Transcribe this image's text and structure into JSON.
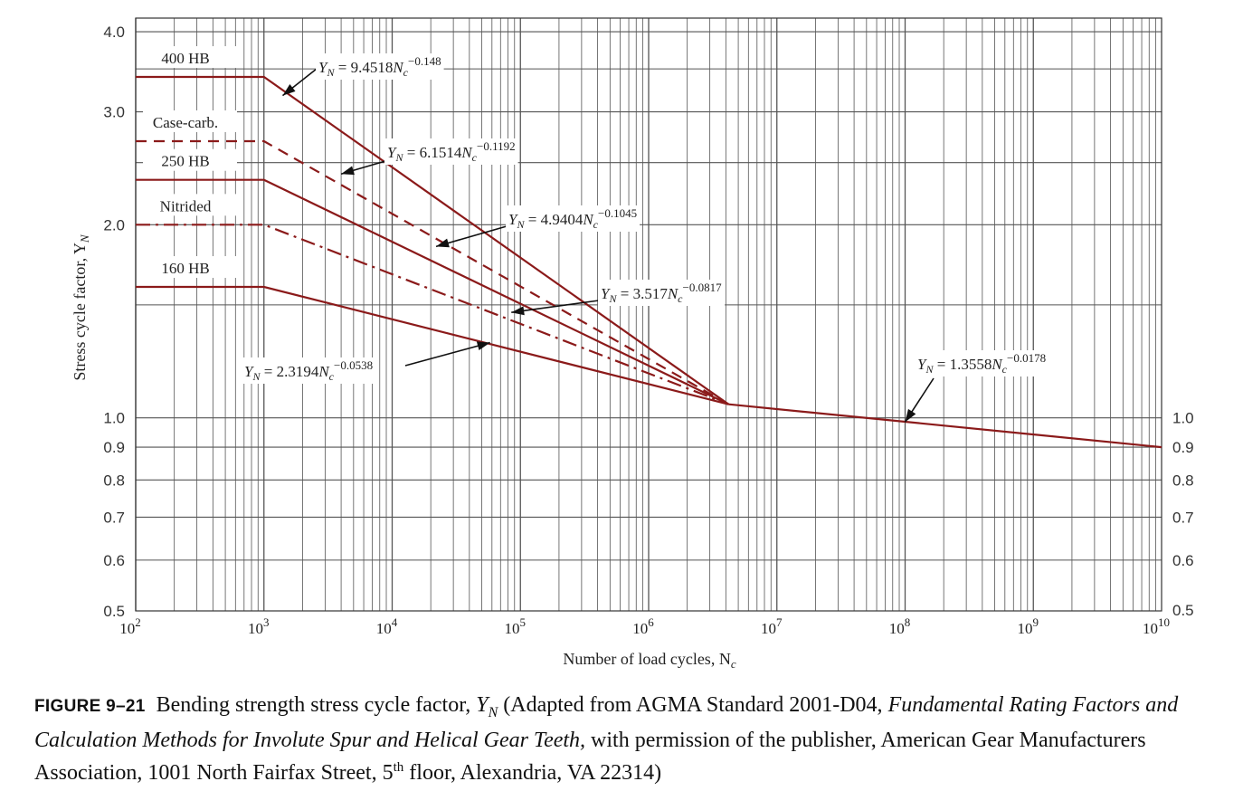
{
  "chart_data": {
    "type": "line",
    "title": "",
    "xlabel": "Number of load cycles, N",
    "xlabel_sub": "c",
    "ylabel": "Stress cycle factor, Y",
    "ylabel_sub": "N",
    "xscale": "log",
    "yscale": "log",
    "xlim": [
      100,
      10000000000
    ],
    "ylim": [
      0.5,
      4.2
    ],
    "grid": true,
    "x_tick_labels": [
      {
        "value": 100,
        "base": "10",
        "exp": "2"
      },
      {
        "value": 1000,
        "base": "10",
        "exp": "3"
      },
      {
        "value": 10000,
        "base": "10",
        "exp": "4"
      },
      {
        "value": 100000,
        "base": "10",
        "exp": "5"
      },
      {
        "value": 1000000,
        "base": "10",
        "exp": "6"
      },
      {
        "value": 10000000,
        "base": "10",
        "exp": "7"
      },
      {
        "value": 100000000,
        "base": "10",
        "exp": "8"
      },
      {
        "value": 1000000000,
        "base": "10",
        "exp": "9"
      },
      {
        "value": 10000000000,
        "base": "10",
        "exp": "10"
      }
    ],
    "y_tick_labels_left": [
      "0.5",
      "0.6",
      "0.7",
      "0.8",
      "0.9",
      "1.0",
      "2.0",
      "3.0",
      "4.0"
    ],
    "y_tick_values_left": [
      0.5,
      0.6,
      0.7,
      0.8,
      0.9,
      1.0,
      2.0,
      3.0,
      4.0
    ],
    "y_tick_labels_right": [
      "0.5",
      "0.6",
      "0.7",
      "0.8",
      "0.9",
      "1.0"
    ],
    "y_tick_values_right": [
      0.5,
      0.6,
      0.7,
      0.8,
      0.9,
      1.0
    ],
    "series": [
      {
        "name": "400 HB",
        "style": "solid",
        "points": [
          [
            100,
            3.4
          ],
          [
            1000,
            3.4
          ],
          [
            4200000,
            1.05
          ]
        ]
      },
      {
        "name": "Case-carb.",
        "style": "dashed",
        "points": [
          [
            100,
            2.7
          ],
          [
            1000,
            2.7
          ],
          [
            4200000,
            1.05
          ]
        ]
      },
      {
        "name": "250 HB",
        "style": "solid",
        "points": [
          [
            100,
            2.35
          ],
          [
            1000,
            2.35
          ],
          [
            4200000,
            1.05
          ]
        ]
      },
      {
        "name": "Nitrided",
        "style": "dashdot",
        "points": [
          [
            100,
            2.0
          ],
          [
            1000,
            2.0
          ],
          [
            4200000,
            1.05
          ]
        ]
      },
      {
        "name": "160 HB",
        "style": "solid",
        "points": [
          [
            100,
            1.6
          ],
          [
            1000,
            1.6
          ],
          [
            4200000,
            1.05
          ]
        ]
      },
      {
        "name": "",
        "style": "solid",
        "points": [
          [
            4200000,
            1.05
          ],
          [
            10000000000,
            0.9
          ]
        ]
      }
    ],
    "annotations": [
      {
        "id": "eq-400hb",
        "prefix": "Y",
        "prefix_sub": "N",
        "body": " = 9.4518N",
        "body_sub": "c",
        "exp": "−0.148"
      },
      {
        "id": "eq-casecarb",
        "prefix": "Y",
        "prefix_sub": "N",
        "body": " = 6.1514N",
        "body_sub": "c",
        "exp": "−0.1192"
      },
      {
        "id": "eq-250hb",
        "prefix": "Y",
        "prefix_sub": "N",
        "body": " = 4.9404N",
        "body_sub": "c",
        "exp": "−0.1045"
      },
      {
        "id": "eq-nitrided",
        "prefix": "Y",
        "prefix_sub": "N",
        "body": " = 3.517N",
        "body_sub": "c",
        "exp": "−0.0817"
      },
      {
        "id": "eq-160hb",
        "prefix": "Y",
        "prefix_sub": "N",
        "body": " = 2.3194N",
        "body_sub": "c",
        "exp": "−0.0538"
      },
      {
        "id": "eq-tail",
        "prefix": "Y",
        "prefix_sub": "N",
        "body": " = 1.3558N",
        "body_sub": "c",
        "exp": "−0.0178"
      }
    ],
    "line_color": "#8b1a1a"
  },
  "caption": {
    "figure_number": "FIGURE 9–21",
    "text_part1": "Bending strength stress cycle factor, ",
    "symbol": "Y",
    "symbol_sub": "N",
    "text_part2": " (Adapted from AGMA Standard 2001-D04, ",
    "italic_title": "Fundamental Rating Factors and Calculation Methods for Involute Spur and Helical Gear Teeth,",
    "text_part3": " with permission of the publisher, American Gear Manufacturers Association, 1001 North Fairfax Street, 5",
    "superscript": "th",
    "text_part4": " floor, Alexandria, VA 22314)"
  }
}
